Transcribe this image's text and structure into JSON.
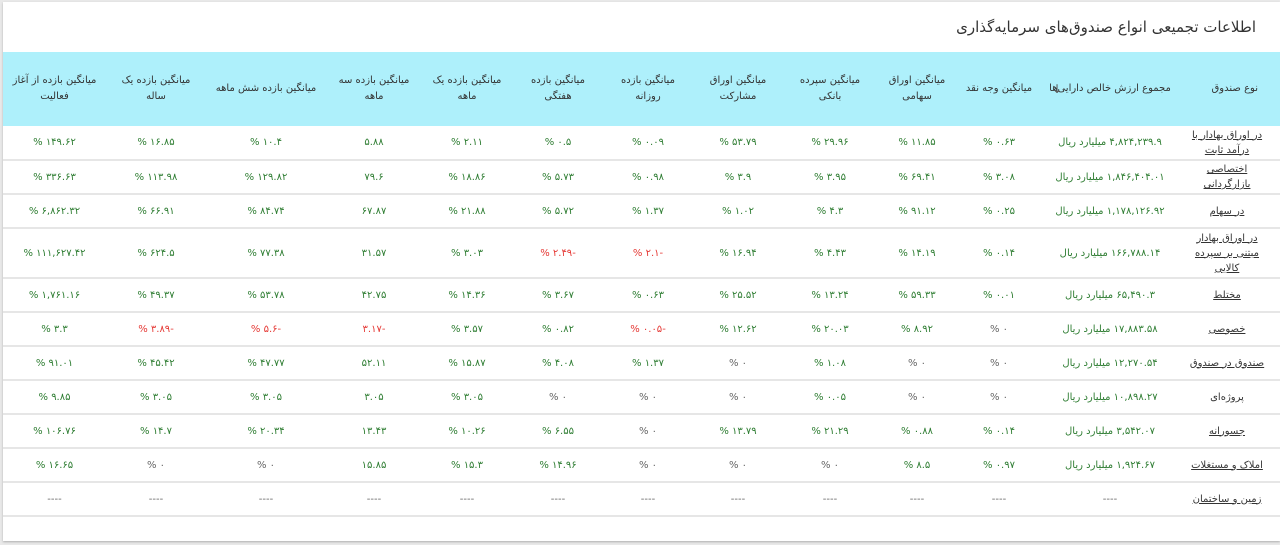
{
  "title": "اطلاعات تجمیعی انواع صندوق‌های سرمایه‌گذاری",
  "colors": {
    "header_bg": "#aef0fb",
    "positive": "#2e7d32",
    "negative": "#e53935"
  },
  "table": {
    "columns": [
      {
        "label": "نوع صندوق"
      },
      {
        "label": "مجموع ارزش خالص دارایی‌ها",
        "sort_icon": "↓"
      },
      {
        "label": "میانگین وجه نقد"
      },
      {
        "label": "میانگین اوراق سهامی"
      },
      {
        "label": "میانگین سپرده بانکی"
      },
      {
        "label": "میانگین اوراق مشارکت"
      },
      {
        "label": "میانگین بازده روزانه"
      },
      {
        "label": "میانگین بازده هفتگی"
      },
      {
        "label": "میانگین بازده یک ماهه"
      },
      {
        "label": "میانگین بازده سه ماهه"
      },
      {
        "label": "میانگین بازده شش ماهه"
      },
      {
        "label": "میانگین بازده یک ساله"
      },
      {
        "label": "میانگین بازده از آغاز فعالیت"
      }
    ],
    "rows": [
      {
        "name": "در اوراق بهادار با درآمد ثابت",
        "nav": "۴,۸۲۴,۲۳۹.۹ میلیارد ریال",
        "cash": "۰.۶۳ %",
        "stock": "۱۱.۸۵ %",
        "deposit": "۲۹.۹۶ %",
        "bonds": "۵۳.۷۹ %",
        "daily": "۰.۰۹ %",
        "weekly": "۰.۵ %",
        "month1": "۲.۱۱ %",
        "month3": "۵.۸۸",
        "month6": "۱۰.۴ %",
        "year1": "۱۶.۸۵ %",
        "inception": "۱۴۹.۶۲ %"
      },
      {
        "name": "اختصاصی بازارگردانی",
        "nav": "۱,۸۴۶,۴۰۴.۰۱ میلیارد ریال",
        "cash": "۳.۰۸ %",
        "stock": "۶۹.۴۱ %",
        "deposit": "۳.۹۵ %",
        "bonds": "۳.۹ %",
        "daily": "۰.۹۸ %",
        "weekly": "۵.۷۳ %",
        "month1": "۱۸.۸۶ %",
        "month3": "۷۹.۶",
        "month6": "۱۲۹.۸۲ %",
        "year1": "۱۱۳.۹۸ %",
        "inception": "۳۳۶.۶۳ %"
      },
      {
        "name": "در سهام",
        "nav": "۱,۱۷۸,۱۲۶.۹۲ میلیارد ریال",
        "cash": "۰.۲۵ %",
        "stock": "۹۱.۱۲ %",
        "deposit": "۴.۳ %",
        "bonds": "۱.۰۲ %",
        "daily": "۱.۳۷ %",
        "weekly": "۵.۷۲ %",
        "month1": "۲۱.۸۸ %",
        "month3": "۶۷.۸۷",
        "month6": "۸۴.۷۴ %",
        "year1": "۶۶.۹۱ %",
        "inception": "۶,۸۶۲.۳۲ %"
      },
      {
        "name": "در اوراق بهادار مبتنی بر سپرده کالایی",
        "nav": "۱۶۶,۷۸۸.۱۴ میلیارد ریال",
        "cash": "۰.۱۴ %",
        "stock": "۱۴.۱۹ %",
        "deposit": "۴.۴۳ %",
        "bonds": "۱۶.۹۴ %",
        "daily": "-۲.۱ %",
        "weekly": "-۲.۴۹ %",
        "month1": "۳.۰۳ %",
        "month3": "۳۱.۵۷",
        "month6": "۷۷.۳۸ %",
        "year1": "۶۲۴.۵ %",
        "inception": "۱۱۱,۶۲۷.۴۲ %",
        "tall": true,
        "neg": [
          "daily",
          "weekly"
        ]
      },
      {
        "name": "مختلط",
        "nav": "۶۵,۴۹۰.۳ میلیارد ریال",
        "cash": "۰.۰۱ %",
        "stock": "۵۹.۳۳ %",
        "deposit": "۱۳.۲۴ %",
        "bonds": "۲۵.۵۲ %",
        "daily": "۰.۶۳ %",
        "weekly": "۳.۶۷ %",
        "month1": "۱۴.۳۶ %",
        "month3": "۴۲.۷۵",
        "month6": "۵۳.۷۸ %",
        "year1": "۴۹.۳۷ %",
        "inception": "۱,۷۶۱.۱۶ %"
      },
      {
        "name": "خصوصی",
        "nav": "۱۷,۸۸۳.۵۸ میلیارد ریال",
        "cash": "۰ %",
        "stock": "۸.۹۲ %",
        "deposit": "۲۰.۰۳ %",
        "bonds": "۱۲.۶۲ %",
        "daily": "-۰.۰۵ %",
        "weekly": "۰.۸۲ %",
        "month1": "۳.۵۷ %",
        "month3": "-۳.۱۷",
        "month6": "-۵.۶ %",
        "year1": "-۳.۸۹ %",
        "inception": "۳.۳ %",
        "neg": [
          "daily",
          "month3",
          "month6",
          "year1"
        ]
      },
      {
        "name": "صندوق در صندوق",
        "nav": "۱۲,۲۷۰.۵۴ میلیارد ریال",
        "cash": "۰ %",
        "stock": "۰ %",
        "deposit": "۱.۰۸ %",
        "bonds": "۰ %",
        "daily": "۱.۳۷ %",
        "weekly": "۴.۰۸ %",
        "month1": "۱۵.۸۷ %",
        "month3": "۵۲.۱۱",
        "month6": "۴۷.۷۷ %",
        "year1": "۴۵.۴۲ %",
        "inception": "۹۱.۰۱ %"
      },
      {
        "name": "پروژه‌ای",
        "nav": "۱۰,۸۹۸.۲۷ میلیارد ریال",
        "cash": "۰ %",
        "stock": "۰ %",
        "deposit": "۰.۰۵ %",
        "bonds": "۰ %",
        "daily": "۰ %",
        "weekly": "۰ %",
        "month1": "۳.۰۵ %",
        "month3": "۳.۰۵",
        "month6": "۳.۰۵ %",
        "year1": "۳.۰۵ %",
        "inception": "۹.۸۵ %",
        "plain_name": true
      },
      {
        "name": "جسورانه",
        "nav": "۳,۵۴۲.۰۷ میلیارد ریال",
        "cash": "۰.۱۴ %",
        "stock": "۰.۸۸ %",
        "deposit": "۲۱.۲۹ %",
        "bonds": "۱۳.۷۹ %",
        "daily": "۰ %",
        "weekly": "۶.۵۵ %",
        "month1": "۱۰.۲۶ %",
        "month3": "۱۳.۴۳",
        "month6": "۲۰.۳۴ %",
        "year1": "۱۴.۷ %",
        "inception": "۱۰۶.۷۶ %"
      },
      {
        "name": "املاک و مستغلات",
        "nav": "۱,۹۲۴.۶۷ میلیارد ریال",
        "cash": "۰.۹۷ %",
        "stock": "۸.۵ %",
        "deposit": "۰ %",
        "bonds": "۰ %",
        "daily": "۰ %",
        "weekly": "۱۴.۹۶ %",
        "month1": "۱۵.۳ %",
        "month3": "۱۵.۸۵",
        "month6": "۰ %",
        "year1": "۰ %",
        "inception": "۱۶.۶۵ %"
      },
      {
        "name": "زمین و ساختمان",
        "nav": "----",
        "cash": "----",
        "stock": "----",
        "deposit": "----",
        "bonds": "----",
        "daily": "----",
        "weekly": "----",
        "month1": "----",
        "month3": "----",
        "month6": "----",
        "year1": "----",
        "inception": "----"
      }
    ]
  }
}
